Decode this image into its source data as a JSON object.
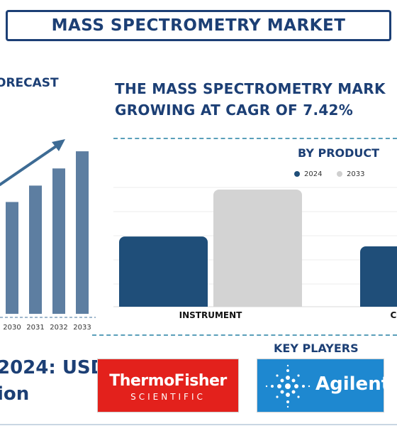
{
  "header": {
    "title": "MASS SPECTROMETRY MARKET"
  },
  "forecast_panel": {
    "title": "FORECAST",
    "title_visible": "ORECAST",
    "market_value_line1": "2024: USD",
    "market_value_line2": "ion"
  },
  "headline": {
    "line1": "THE MASS SPECTROMETRY MARK",
    "line2": "GROWING AT CAGR OF 7.42%"
  },
  "product_panel": {
    "title": "BY PRODUCT"
  },
  "key_players": {
    "title": "KEY PLAYERS",
    "logos": [
      {
        "name": "ThermoFisher",
        "subtitle": "SCIENTIFIC"
      },
      {
        "name": "Agilent"
      }
    ]
  },
  "colors": {
    "navy": "#1c3f75",
    "bar_2024": "#1f4e79",
    "bar_2033": "#d3d3d3",
    "forecast_bar": "#5d7ea1",
    "arrow": "#3d6b94",
    "dashed": "#5a9fba",
    "thermo_red": "#e3211c",
    "agilent_blue": "#1e88d0"
  },
  "chart_data": [
    {
      "type": "bar",
      "categories": [
        "2030",
        "2031",
        "2032",
        "2033"
      ],
      "values": [
        150,
        172,
        195,
        218
      ],
      "ylim": [
        0,
        240
      ],
      "grid": false,
      "annotations": [
        "upward trend arrow"
      ]
    },
    {
      "type": "bar",
      "title": "BY PRODUCT",
      "categories": [
        "INSTRUMENT",
        "CO"
      ],
      "series": [
        {
          "name": "2024",
          "values": [
            100,
            86
          ]
        },
        {
          "name": "2033",
          "values": [
            167,
            null
          ]
        }
      ],
      "ylim": [
        0,
        170
      ],
      "grid": true,
      "legend": "top"
    }
  ]
}
